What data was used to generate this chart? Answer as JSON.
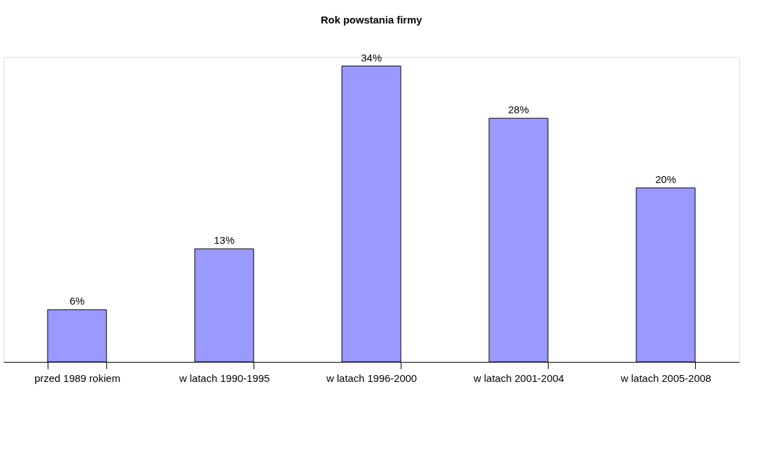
{
  "chart_data": {
    "type": "bar",
    "title": "Rok powstania firmy",
    "categories": [
      "przed 1989 rokiem",
      "w latach 1990-1995",
      "w latach 1996-2000",
      "w latach 2001-2004",
      "w latach 2005-2008"
    ],
    "values": [
      6,
      13,
      34,
      28,
      20
    ],
    "value_labels": [
      "6%",
      "13%",
      "34%",
      "28%",
      "20%"
    ],
    "color": "#9999ff"
  }
}
